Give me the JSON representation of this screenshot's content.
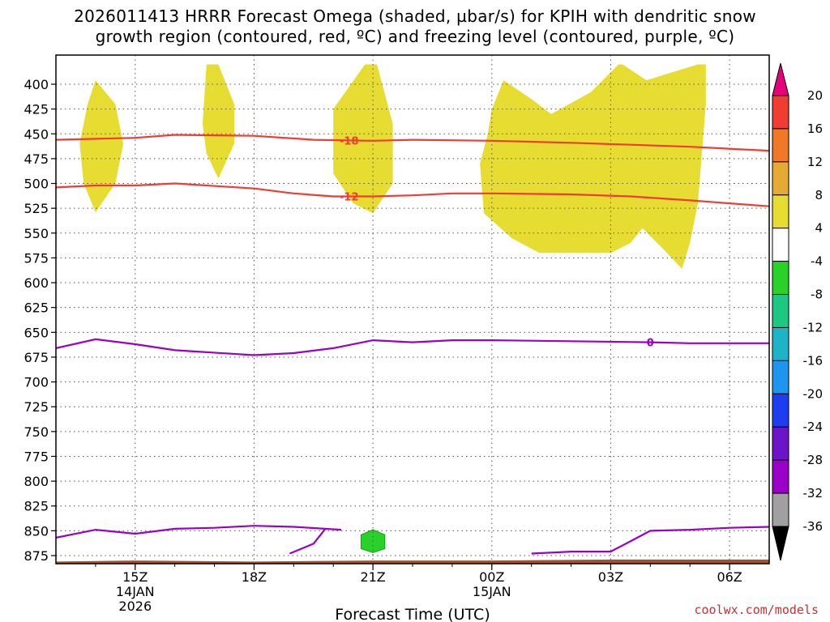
{
  "title": {
    "line1": "2026011413 HRRR Forecast Omega (shaded, µbar/s) for KPIH with dendritic snow",
    "line2": "growth region (contoured, red, ºC) and freezing level (contoured, purple, ºC)"
  },
  "credit": "coolwx.com/models",
  "colors": {
    "omega_pos": "#e6dc32",
    "omega_neg": "#28d228",
    "dendritic": "#f03c32",
    "freezing": "#9b00c8",
    "terrain": "#a0522d",
    "grid": "#888888"
  },
  "chart_data": {
    "type": "area",
    "xlabel": "Forecast Time (UTC)",
    "ylabel": "",
    "x_range_hours": [
      13,
      31
    ],
    "y_range_hpa": [
      380,
      885
    ],
    "y_scale": "inverted",
    "y_ticks": [
      400,
      425,
      450,
      475,
      500,
      525,
      550,
      575,
      600,
      625,
      650,
      675,
      700,
      725,
      750,
      775,
      800,
      825,
      850,
      875
    ],
    "x_ticks": [
      {
        "hour": 15,
        "label": "15Z",
        "sub1": "14JAN",
        "sub2": "2026"
      },
      {
        "hour": 18,
        "label": "18Z",
        "sub1": "",
        "sub2": ""
      },
      {
        "hour": 21,
        "label": "21Z",
        "sub1": "",
        "sub2": ""
      },
      {
        "hour": 24,
        "label": "00Z",
        "sub1": "15JAN",
        "sub2": ""
      },
      {
        "hour": 27,
        "label": "03Z",
        "sub1": "",
        "sub2": ""
      },
      {
        "hour": 30,
        "label": "06Z",
        "sub1": "",
        "sub2": ""
      }
    ],
    "grid": true,
    "series": [
      {
        "name": "-18",
        "kind": "dendritic",
        "x": [
          13,
          15,
          16,
          18,
          19.5,
          21,
          22,
          24,
          26,
          27.5,
          29,
          31
        ],
        "y": [
          456,
          454,
          451,
          452,
          456,
          457,
          456,
          457,
          459,
          461,
          463,
          467
        ]
      },
      {
        "name": "-12",
        "kind": "dendritic",
        "x": [
          13,
          14,
          15,
          16,
          18,
          19,
          20,
          21,
          22,
          23,
          24,
          26,
          27.5,
          29,
          31
        ],
        "y": [
          504,
          502,
          502,
          500,
          505,
          510,
          513,
          513,
          512,
          510,
          510,
          511,
          513,
          517,
          523
        ]
      },
      {
        "name": "0",
        "kind": "freezing",
        "x": [
          13,
          14,
          15,
          16,
          18,
          19,
          20,
          21,
          22,
          23,
          24,
          26,
          28,
          29,
          30,
          31
        ],
        "y": [
          666,
          657,
          662,
          668,
          673,
          671,
          666,
          658,
          660,
          658,
          658,
          659,
          660,
          661,
          661,
          661
        ]
      },
      {
        "name": "",
        "kind": "freezing",
        "x": [
          13,
          14,
          15,
          16,
          17,
          18,
          19,
          20.2
        ],
        "y": [
          857,
          849,
          853,
          848,
          847,
          845,
          846,
          849
        ]
      },
      {
        "name": "",
        "kind": "freezing",
        "x": [
          19.8,
          19.5,
          18.9
        ],
        "y": [
          848,
          863,
          873
        ]
      },
      {
        "name": "",
        "kind": "freezing",
        "x": [
          25,
          26,
          27,
          28,
          29,
          30,
          31
        ],
        "y": [
          873,
          871,
          871,
          850,
          849,
          847,
          846
        ]
      }
    ],
    "omega_regions": [
      {
        "value": 4,
        "points": [
          [
            14,
            396
          ],
          [
            14.5,
            420
          ],
          [
            14.7,
            460
          ],
          [
            14.5,
            500
          ],
          [
            14,
            529
          ],
          [
            13.7,
            500
          ],
          [
            13.6,
            460
          ],
          [
            13.8,
            420
          ]
        ]
      },
      {
        "value": 4,
        "points": [
          [
            16.8,
            380
          ],
          [
            17.1,
            380
          ],
          [
            17.5,
            420
          ],
          [
            17.5,
            460
          ],
          [
            17.1,
            495
          ],
          [
            16.8,
            470
          ],
          [
            16.7,
            440
          ]
        ]
      },
      {
        "value": 4,
        "points": [
          [
            20,
            425
          ],
          [
            20.8,
            380
          ],
          [
            21.1,
            380
          ],
          [
            21.5,
            440
          ],
          [
            21.5,
            500
          ],
          [
            21,
            530
          ],
          [
            20.5,
            520
          ],
          [
            20,
            490
          ],
          [
            20,
            450
          ]
        ]
      },
      {
        "value": 4,
        "points": [
          [
            24,
            425
          ],
          [
            24.3,
            396
          ],
          [
            25,
            415
          ],
          [
            25.5,
            430
          ],
          [
            26.5,
            408
          ],
          [
            27.2,
            380
          ],
          [
            27.3,
            380
          ],
          [
            27.9,
            396
          ],
          [
            29.2,
            380
          ],
          [
            29.4,
            380
          ],
          [
            29.4,
            420
          ],
          [
            29.3,
            470
          ],
          [
            29.2,
            520
          ],
          [
            29,
            560
          ],
          [
            28.8,
            586
          ],
          [
            28.3,
            565
          ],
          [
            27.8,
            545
          ],
          [
            27.5,
            560
          ],
          [
            27,
            570
          ],
          [
            25.2,
            570
          ],
          [
            24.5,
            555
          ],
          [
            23.8,
            530
          ],
          [
            23.7,
            480
          ],
          [
            23.9,
            450
          ]
        ]
      },
      {
        "value": -6,
        "points": [
          [
            20.7,
            854
          ],
          [
            21,
            849
          ],
          [
            21.3,
            854
          ],
          [
            21.3,
            868
          ],
          [
            21,
            872
          ],
          [
            20.7,
            868
          ]
        ]
      }
    ],
    "terrain_hpa": [
      [
        13,
        881
      ],
      [
        15,
        880
      ],
      [
        18,
        881
      ],
      [
        21,
        880
      ],
      [
        24,
        880
      ],
      [
        27,
        879
      ],
      [
        31,
        879
      ]
    ],
    "colorbar": {
      "labels": [
        "20",
        "16",
        "12",
        "8",
        "4",
        "-4",
        "-8",
        "-12",
        "-16",
        "-20",
        "-24",
        "-28",
        "-32",
        "-36"
      ],
      "colors": [
        "#e6007a",
        "#f03c32",
        "#f07828",
        "#e6aa32",
        "#e6dc32",
        "#ffffff",
        "#28d228",
        "#1ec882",
        "#1eb4c8",
        "#1e96f0",
        "#1e3cf0",
        "#6e14c8",
        "#9b00c8",
        "#a0a0a0",
        "#000000"
      ]
    }
  }
}
